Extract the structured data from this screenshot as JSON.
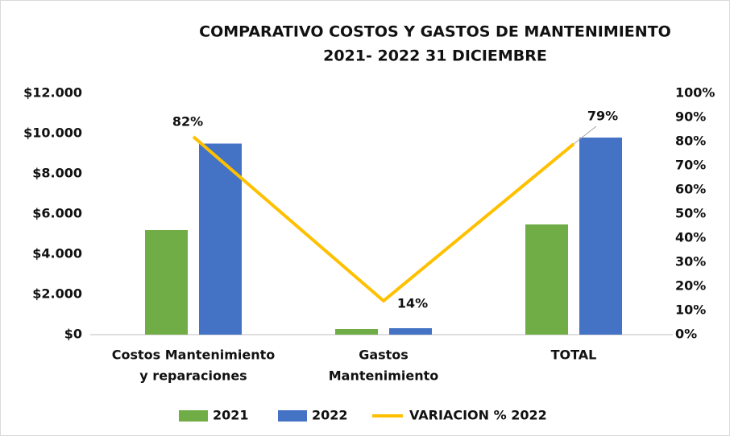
{
  "chart_data": {
    "type": "bar_line",
    "title": [
      "COMPARATIVO COSTOS Y GASTOS DE MANTENIMIENTO",
      "2021- 2022  31 DICIEMBRE"
    ],
    "categories": [
      [
        "Costos Mantenimiento",
        "y reparaciones"
      ],
      [
        "Gastos",
        "Mantenimiento"
      ],
      [
        "TOTAL"
      ]
    ],
    "series": [
      {
        "name": "2021",
        "color": "#70ad47",
        "values": [
          5200,
          280,
          5480
        ]
      },
      {
        "name": "2022",
        "color": "#4472c4",
        "values": [
          9500,
          320,
          9800
        ]
      },
      {
        "name": "VARIACION % 2022",
        "color": "#ffc000",
        "axis": "y2",
        "values": [
          82,
          14,
          79
        ],
        "value_labels": [
          "82%",
          "14%",
          "79%"
        ]
      }
    ],
    "ylim": [
      0,
      12000
    ],
    "yticks": [
      {
        "value": 0,
        "label": "$0"
      },
      {
        "value": 2000,
        "label": "$2.000"
      },
      {
        "value": 4000,
        "label": "$4.000"
      },
      {
        "value": 6000,
        "label": "$6.000"
      },
      {
        "value": 8000,
        "label": "$8.000"
      },
      {
        "value": 10000,
        "label": "$10.000"
      },
      {
        "value": 12000,
        "label": "$12.000"
      }
    ],
    "y2lim": [
      0,
      100
    ],
    "y2ticks": [
      {
        "value": 0,
        "label": "0%"
      },
      {
        "value": 10,
        "label": "10%"
      },
      {
        "value": 20,
        "label": "20%"
      },
      {
        "value": 30,
        "label": "30%"
      },
      {
        "value": 40,
        "label": "40%"
      },
      {
        "value": 50,
        "label": "50%"
      },
      {
        "value": 60,
        "label": "60%"
      },
      {
        "value": 70,
        "label": "70%"
      },
      {
        "value": 80,
        "label": "80%"
      },
      {
        "value": 90,
        "label": "90%"
      },
      {
        "value": 100,
        "label": "100%"
      }
    ],
    "grid": false,
    "legend": "bottom"
  }
}
